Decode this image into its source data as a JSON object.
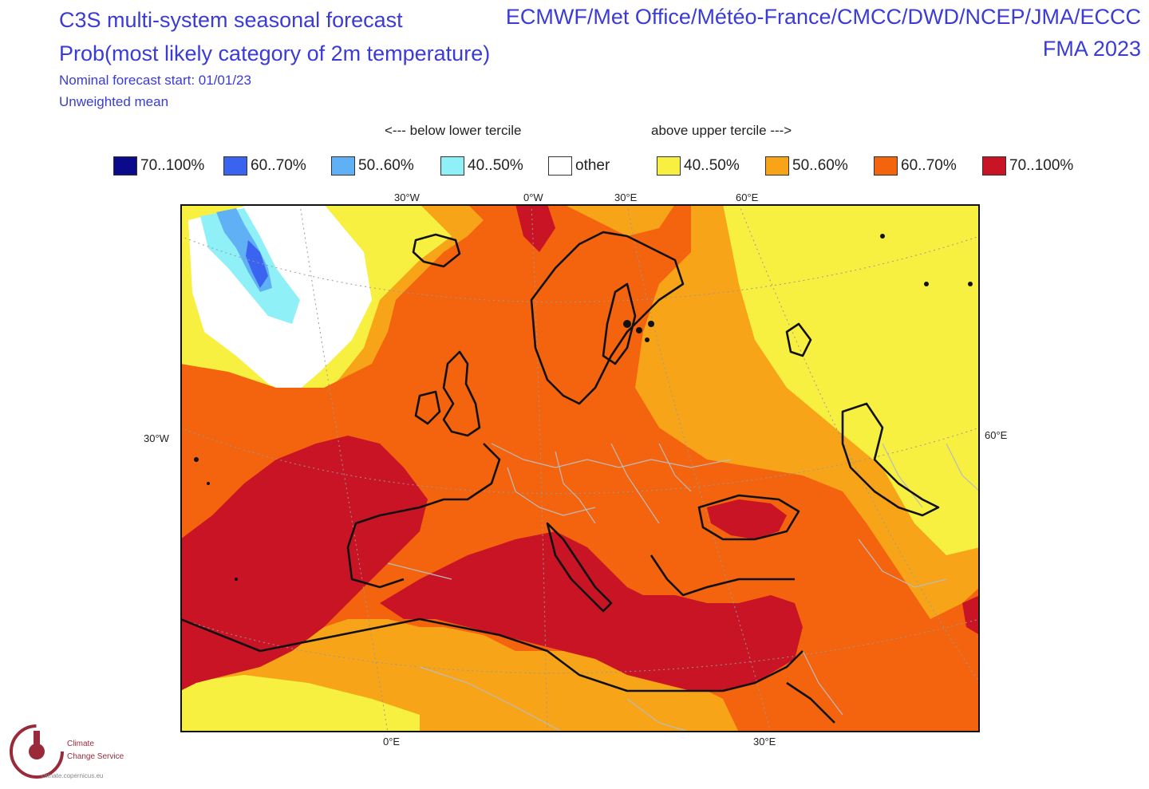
{
  "header": {
    "title_line1": "C3S multi-system seasonal forecast",
    "title_line2": "Prob(most likely category of 2m temperature)",
    "forecast_start": "Nominal forecast start: 01/01/23",
    "mean_type": "Unweighted mean",
    "centres": "ECMWF/Met Office/Météo-France/CMCC/DWD/NCEP/JMA/ECCC",
    "period": "FMA 2023"
  },
  "legend": {
    "below_label": "<--- below lower tercile",
    "above_label": "above upper tercile --->",
    "items": [
      {
        "label": "70..100%",
        "color": "#0a0a8a"
      },
      {
        "label": "60..70%",
        "color": "#3a63f0"
      },
      {
        "label": "50..60%",
        "color": "#5fb0f5"
      },
      {
        "label": "40..50%",
        "color": "#8ff0f7"
      },
      {
        "label": "other",
        "color": "#ffffff"
      },
      {
        "label": "40..50%",
        "color": "#f8f040"
      },
      {
        "label": "50..60%",
        "color": "#f7a418"
      },
      {
        "label": "60..70%",
        "color": "#f4630e"
      },
      {
        "label": "70..100%",
        "color": "#c81424"
      }
    ]
  },
  "axes": {
    "top": [
      "30°W",
      "0°W",
      "30°E",
      "60°E"
    ],
    "left": "30°W",
    "right": "60°E",
    "bottom": [
      "0°E",
      "30°E"
    ]
  },
  "logo": {
    "line1": "Climate",
    "line2": "Change Service",
    "line3": "climate.copernicus.eu"
  }
}
